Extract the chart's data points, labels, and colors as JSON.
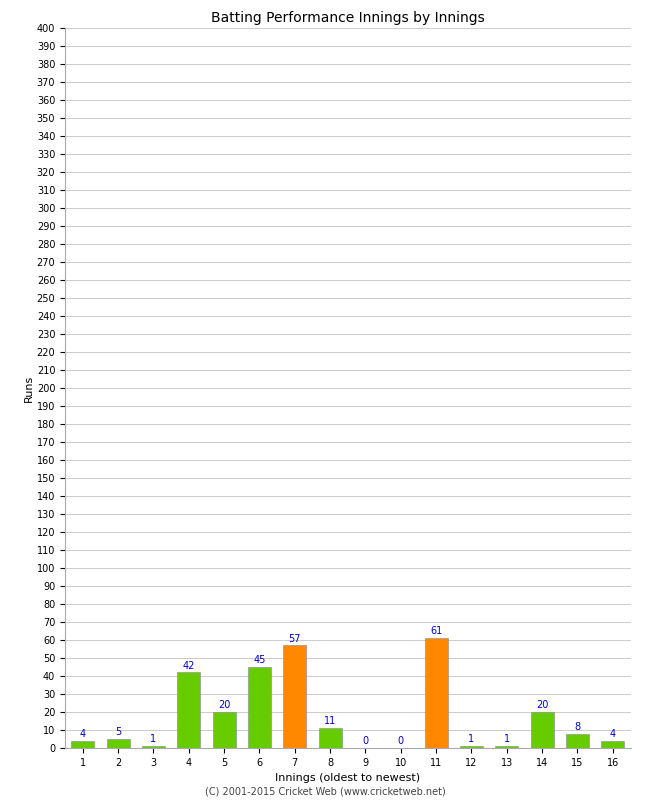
{
  "innings": [
    1,
    2,
    3,
    4,
    5,
    6,
    7,
    8,
    9,
    10,
    11,
    12,
    13,
    14,
    15,
    16
  ],
  "runs": [
    4,
    5,
    1,
    42,
    20,
    45,
    57,
    11,
    0,
    0,
    61,
    1,
    1,
    20,
    8,
    4
  ],
  "colors": [
    "#66cc00",
    "#66cc00",
    "#66cc00",
    "#66cc00",
    "#66cc00",
    "#66cc00",
    "#ff8800",
    "#66cc00",
    "#66cc00",
    "#66cc00",
    "#ff8800",
    "#66cc00",
    "#66cc00",
    "#66cc00",
    "#66cc00",
    "#66cc00"
  ],
  "title": "Batting Performance Innings by Innings",
  "xlabel": "Innings (oldest to newest)",
  "ylabel": "Runs",
  "ytick_step": 10,
  "ylim": [
    0,
    400
  ],
  "footer": "(C) 2001-2015 Cricket Web (www.cricketweb.net)",
  "label_color": "#0000cc",
  "bar_edge_color": "#888888",
  "background_color": "#ffffff",
  "grid_color": "#cccccc",
  "tick_label_fontsize": 7,
  "axis_label_fontsize": 8,
  "title_fontsize": 10,
  "footer_fontsize": 7,
  "value_label_fontsize": 7
}
